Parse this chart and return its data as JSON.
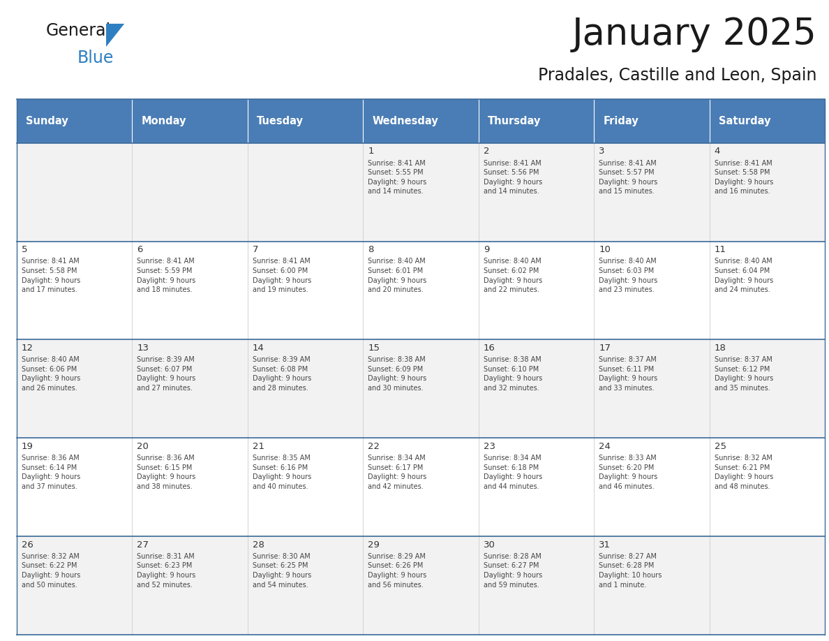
{
  "title": "January 2025",
  "subtitle": "Pradales, Castille and Leon, Spain",
  "days_of_week": [
    "Sunday",
    "Monday",
    "Tuesday",
    "Wednesday",
    "Thursday",
    "Friday",
    "Saturday"
  ],
  "header_bg": "#4A7DB5",
  "header_text": "#FFFFFF",
  "cell_bg_light": "#F2F2F2",
  "cell_bg_white": "#FFFFFF",
  "cell_border": "#CCCCCC",
  "day_num_color": "#333333",
  "cell_text_color": "#444444",
  "title_color": "#1a1a1a",
  "subtitle_color": "#1a1a1a",
  "logo_general_color": "#1a1a1a",
  "logo_blue_color": "#2E7FC1",
  "row_border_color": "#3A6A9A",
  "calendar": [
    [
      {
        "day": null,
        "info": ""
      },
      {
        "day": null,
        "info": ""
      },
      {
        "day": null,
        "info": ""
      },
      {
        "day": 1,
        "info": "Sunrise: 8:41 AM\nSunset: 5:55 PM\nDaylight: 9 hours\nand 14 minutes."
      },
      {
        "day": 2,
        "info": "Sunrise: 8:41 AM\nSunset: 5:56 PM\nDaylight: 9 hours\nand 14 minutes."
      },
      {
        "day": 3,
        "info": "Sunrise: 8:41 AM\nSunset: 5:57 PM\nDaylight: 9 hours\nand 15 minutes."
      },
      {
        "day": 4,
        "info": "Sunrise: 8:41 AM\nSunset: 5:58 PM\nDaylight: 9 hours\nand 16 minutes."
      }
    ],
    [
      {
        "day": 5,
        "info": "Sunrise: 8:41 AM\nSunset: 5:58 PM\nDaylight: 9 hours\nand 17 minutes."
      },
      {
        "day": 6,
        "info": "Sunrise: 8:41 AM\nSunset: 5:59 PM\nDaylight: 9 hours\nand 18 minutes."
      },
      {
        "day": 7,
        "info": "Sunrise: 8:41 AM\nSunset: 6:00 PM\nDaylight: 9 hours\nand 19 minutes."
      },
      {
        "day": 8,
        "info": "Sunrise: 8:40 AM\nSunset: 6:01 PM\nDaylight: 9 hours\nand 20 minutes."
      },
      {
        "day": 9,
        "info": "Sunrise: 8:40 AM\nSunset: 6:02 PM\nDaylight: 9 hours\nand 22 minutes."
      },
      {
        "day": 10,
        "info": "Sunrise: 8:40 AM\nSunset: 6:03 PM\nDaylight: 9 hours\nand 23 minutes."
      },
      {
        "day": 11,
        "info": "Sunrise: 8:40 AM\nSunset: 6:04 PM\nDaylight: 9 hours\nand 24 minutes."
      }
    ],
    [
      {
        "day": 12,
        "info": "Sunrise: 8:40 AM\nSunset: 6:06 PM\nDaylight: 9 hours\nand 26 minutes."
      },
      {
        "day": 13,
        "info": "Sunrise: 8:39 AM\nSunset: 6:07 PM\nDaylight: 9 hours\nand 27 minutes."
      },
      {
        "day": 14,
        "info": "Sunrise: 8:39 AM\nSunset: 6:08 PM\nDaylight: 9 hours\nand 28 minutes."
      },
      {
        "day": 15,
        "info": "Sunrise: 8:38 AM\nSunset: 6:09 PM\nDaylight: 9 hours\nand 30 minutes."
      },
      {
        "day": 16,
        "info": "Sunrise: 8:38 AM\nSunset: 6:10 PM\nDaylight: 9 hours\nand 32 minutes."
      },
      {
        "day": 17,
        "info": "Sunrise: 8:37 AM\nSunset: 6:11 PM\nDaylight: 9 hours\nand 33 minutes."
      },
      {
        "day": 18,
        "info": "Sunrise: 8:37 AM\nSunset: 6:12 PM\nDaylight: 9 hours\nand 35 minutes."
      }
    ],
    [
      {
        "day": 19,
        "info": "Sunrise: 8:36 AM\nSunset: 6:14 PM\nDaylight: 9 hours\nand 37 minutes."
      },
      {
        "day": 20,
        "info": "Sunrise: 8:36 AM\nSunset: 6:15 PM\nDaylight: 9 hours\nand 38 minutes."
      },
      {
        "day": 21,
        "info": "Sunrise: 8:35 AM\nSunset: 6:16 PM\nDaylight: 9 hours\nand 40 minutes."
      },
      {
        "day": 22,
        "info": "Sunrise: 8:34 AM\nSunset: 6:17 PM\nDaylight: 9 hours\nand 42 minutes."
      },
      {
        "day": 23,
        "info": "Sunrise: 8:34 AM\nSunset: 6:18 PM\nDaylight: 9 hours\nand 44 minutes."
      },
      {
        "day": 24,
        "info": "Sunrise: 8:33 AM\nSunset: 6:20 PM\nDaylight: 9 hours\nand 46 minutes."
      },
      {
        "day": 25,
        "info": "Sunrise: 8:32 AM\nSunset: 6:21 PM\nDaylight: 9 hours\nand 48 minutes."
      }
    ],
    [
      {
        "day": 26,
        "info": "Sunrise: 8:32 AM\nSunset: 6:22 PM\nDaylight: 9 hours\nand 50 minutes."
      },
      {
        "day": 27,
        "info": "Sunrise: 8:31 AM\nSunset: 6:23 PM\nDaylight: 9 hours\nand 52 minutes."
      },
      {
        "day": 28,
        "info": "Sunrise: 8:30 AM\nSunset: 6:25 PM\nDaylight: 9 hours\nand 54 minutes."
      },
      {
        "day": 29,
        "info": "Sunrise: 8:29 AM\nSunset: 6:26 PM\nDaylight: 9 hours\nand 56 minutes."
      },
      {
        "day": 30,
        "info": "Sunrise: 8:28 AM\nSunset: 6:27 PM\nDaylight: 9 hours\nand 59 minutes."
      },
      {
        "day": 31,
        "info": "Sunrise: 8:27 AM\nSunset: 6:28 PM\nDaylight: 10 hours\nand 1 minute."
      },
      {
        "day": null,
        "info": ""
      }
    ]
  ]
}
